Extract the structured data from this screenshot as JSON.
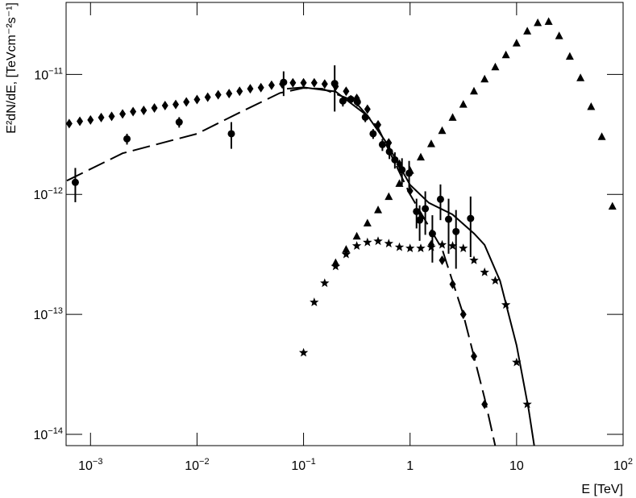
{
  "chart_data": {
    "type": "scatter",
    "xlabel": "E [TeV]",
    "ylabel": "E²dN/dE, [TeVcm⁻²s⁻¹]",
    "xlog": true,
    "ylog": true,
    "xlim": [
      0.00059,
      100
    ],
    "ylim": [
      8.05e-15,
      3.98e-11
    ],
    "xticks": [
      {
        "value": 0.001,
        "label": "10",
        "sup": "−3"
      },
      {
        "value": 0.01,
        "label": "10",
        "sup": "−2"
      },
      {
        "value": 0.1,
        "label": "10",
        "sup": "−1"
      },
      1,
      10,
      {
        "value": 100,
        "label": "10",
        "sup": "2"
      }
    ],
    "yticks": [
      {
        "value": 1e-14,
        "label": "10",
        "sup": "−14"
      },
      {
        "value": 1e-13,
        "label": "10",
        "sup": "−13"
      },
      {
        "value": 1e-12,
        "label": "10",
        "sup": "−12"
      },
      {
        "value": 1e-11,
        "label": "10",
        "sup": "−11"
      }
    ],
    "series": [
      {
        "marker": "circle",
        "color": "#000000",
        "x": [
          0.00072,
          0.0022,
          0.0068,
          0.021,
          0.065,
          0.196,
          0.234,
          0.278,
          0.32,
          0.38,
          0.45,
          0.55,
          0.64,
          0.72,
          0.84,
          0.98,
          1.15,
          1.23,
          1.39,
          1.62,
          1.93,
          2.3,
          2.7,
          3.7
        ],
        "values": [
          1.26e-12,
          2.9e-12,
          4e-12,
          3.2e-12,
          8.6e-12,
          8.4e-12,
          6e-12,
          6.2e-12,
          5.9e-12,
          4.4e-12,
          3.2e-12,
          2.6e-12,
          2.27e-12,
          1.94e-12,
          1.6e-12,
          1.5e-12,
          7.2e-13,
          6.1e-13,
          7.6e-13,
          4.7e-13,
          9.1e-13,
          6.2e-13,
          4.9e-13,
          6.3e-13
        ],
        "errors": [
          4e-13,
          3e-13,
          4e-13,
          8e-13,
          2e-12,
          3.5e-12,
          6e-13,
          5e-13,
          5e-13,
          4e-13,
          3e-13,
          3e-13,
          3e-13,
          3e-13,
          4e-13,
          4e-13,
          2e-13,
          2e-13,
          3e-13,
          2e-13,
          3e-13,
          3e-13,
          2.5e-13,
          3.3e-13
        ]
      },
      {
        "marker": "diamond",
        "color": "#000000",
        "x": [
          0.000631,
          0.000794,
          0.001,
          0.00126,
          0.00158,
          0.002,
          0.00251,
          0.00316,
          0.00398,
          0.00501,
          0.00631,
          0.00794,
          0.01,
          0.0126,
          0.0158,
          0.02,
          0.0251,
          0.0316,
          0.0398,
          0.0501,
          0.0631,
          0.0794,
          0.1,
          0.126,
          0.158,
          0.2,
          0.251,
          0.316,
          0.398,
          0.501,
          0.631,
          0.794,
          1,
          1.26,
          1.58,
          2,
          2.51,
          3.16,
          3.98,
          5.01
        ],
        "values": [
          3.89e-12,
          4.07e-12,
          4.17e-12,
          4.37e-12,
          4.47e-12,
          4.68e-12,
          4.9e-12,
          5.01e-12,
          5.25e-12,
          5.5e-12,
          5.62e-12,
          5.89e-12,
          6.17e-12,
          6.46e-12,
          6.76e-12,
          6.92e-12,
          7.24e-12,
          7.59e-12,
          7.76e-12,
          8.13e-12,
          8.32e-12,
          8.51e-12,
          8.51e-12,
          8.51e-12,
          8.32e-12,
          7.94e-12,
          7.24e-12,
          6.31e-12,
          5.13e-12,
          3.8e-12,
          2.69e-12,
          1.78e-12,
          1.07e-12,
          6.31e-13,
          3.8e-13,
          2.82e-13,
          1.78e-13,
          1e-13,
          4.47e-14,
          1.78e-14
        ]
      },
      {
        "marker": "triangle",
        "color": "#000000",
        "x": [
          0.2,
          0.251,
          0.316,
          0.398,
          0.501,
          0.631,
          0.794,
          1,
          1.26,
          1.58,
          2,
          2.51,
          3.16,
          3.98,
          5.01,
          6.31,
          7.94,
          10,
          12.6,
          15.8,
          20,
          25.1,
          31.6,
          39.8,
          50.1,
          63.1,
          79.4
        ],
        "values": [
          2.69e-13,
          3.47e-13,
          4.47e-13,
          5.75e-13,
          7.41e-13,
          9.55e-13,
          1.23e-12,
          1.58e-12,
          2.04e-12,
          2.63e-12,
          3.39e-12,
          4.37e-12,
          5.62e-12,
          7.24e-12,
          9.12e-12,
          1.15e-11,
          1.45e-11,
          1.82e-11,
          2.29e-11,
          2.69e-11,
          2.75e-11,
          2.09e-11,
          1.41e-11,
          9.33e-12,
          5.37e-12,
          3.02e-12,
          7.94e-13
        ]
      },
      {
        "marker": "star",
        "color": "#000000",
        "x": [
          0.1,
          0.126,
          0.158,
          0.2,
          0.251,
          0.316,
          0.398,
          0.501,
          0.631,
          0.794,
          1,
          1.26,
          1.58,
          2,
          2.51,
          3.16,
          3.98,
          5.01,
          6.31,
          7.94,
          10,
          12.6
        ],
        "values": [
          4.79e-14,
          1.26e-13,
          1.82e-13,
          2.51e-13,
          3.16e-13,
          3.72e-13,
          3.98e-13,
          4.07e-13,
          3.89e-13,
          3.63e-13,
          3.55e-13,
          3.55e-13,
          3.63e-13,
          3.8e-13,
          3.72e-13,
          3.55e-13,
          2.82e-13,
          2.24e-13,
          1.91e-13,
          1.2e-13,
          3.98e-14,
          1.78e-14
        ]
      },
      {
        "line": "dashed",
        "color": "#000000",
        "x": [
          0.0006,
          0.002,
          0.01,
          0.025,
          0.06,
          0.1,
          0.15,
          0.3,
          0.5,
          1,
          2,
          3.16,
          5.01,
          6.31
        ],
        "values": [
          1.3e-12,
          2.2e-12,
          3.2e-12,
          4.8e-12,
          7e-12,
          7.7e-12,
          7.6e-12,
          6e-12,
          3.6e-12,
          1e-12,
          3.5e-13,
          1e-13,
          2e-14,
          8e-15
        ]
      },
      {
        "line": "solid",
        "color": "#000000",
        "x": [
          0.07,
          0.1,
          0.2,
          0.4,
          0.6,
          1,
          1.5,
          2.5,
          4,
          5,
          7,
          10,
          13,
          15
        ],
        "values": [
          7.6e-12,
          7.8e-12,
          7.2e-12,
          4.5e-12,
          2.7e-12,
          1.2e-12,
          8.5e-13,
          6.8e-13,
          4.7e-13,
          3.8e-13,
          1.9e-13,
          5.5e-14,
          1.6e-14,
          7e-15
        ]
      }
    ]
  }
}
